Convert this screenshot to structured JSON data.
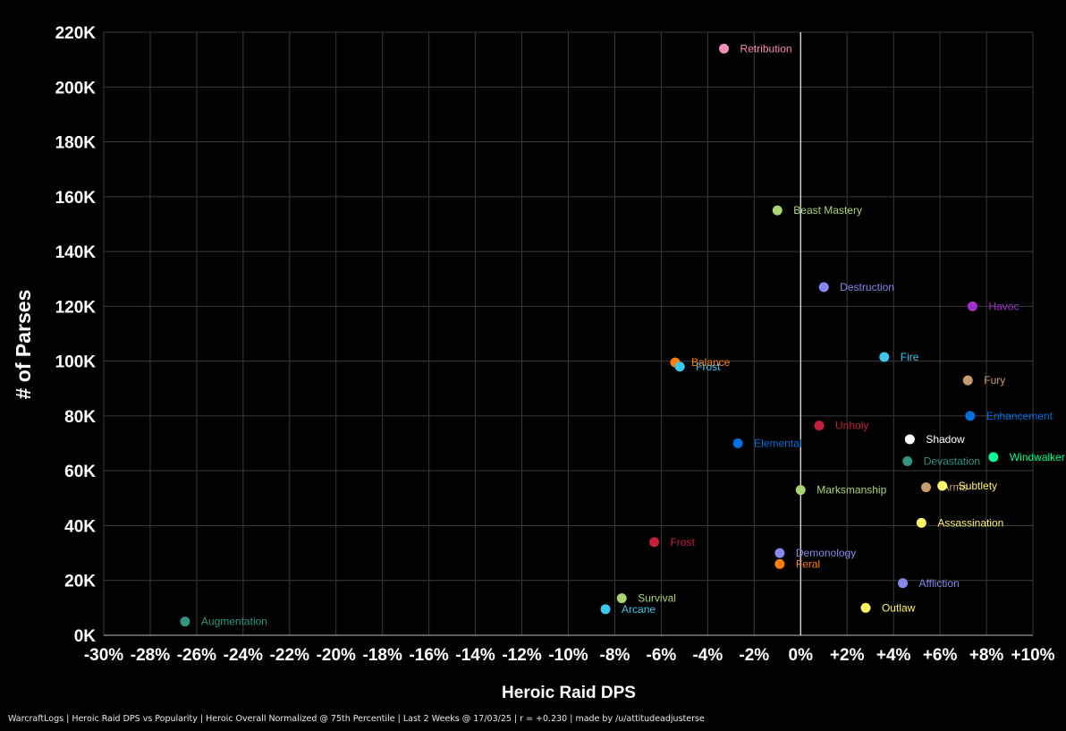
{
  "footer": "WarcraftLogs | Heroic Raid DPS vs Popularity | Heroic Overall Normalized @ 75th Percentile | Last 2 Weeks @ 17/03/25 | r = +0.230 | made by /u/attitudeadjusterse",
  "chart_data": {
    "type": "scatter",
    "title": "",
    "xlabel": "Heroic Raid DPS",
    "ylabel": "# of Parses",
    "xlim": [
      -30,
      10
    ],
    "ylim": [
      0,
      220000
    ],
    "x_ticks": [
      -30,
      -28,
      -26,
      -24,
      -22,
      -20,
      -18,
      -16,
      -14,
      -12,
      -10,
      -8,
      -6,
      -4,
      -2,
      0,
      2,
      4,
      6,
      8,
      10
    ],
    "x_tick_labels": [
      "-30%",
      "-28%",
      "-26%",
      "-24%",
      "-22%",
      "-20%",
      "-18%",
      "-16%",
      "-14%",
      "-12%",
      "-10%",
      "-8%",
      "-6%",
      "-4%",
      "-2%",
      "0%",
      "+2%",
      "+4%",
      "+6%",
      "+8%",
      "+10%"
    ],
    "y_ticks": [
      0,
      20000,
      40000,
      60000,
      80000,
      100000,
      120000,
      140000,
      160000,
      180000,
      200000,
      220000
    ],
    "y_tick_labels": [
      "0K",
      "20K",
      "40K",
      "60K",
      "80K",
      "100K",
      "120K",
      "140K",
      "160K",
      "180K",
      "200K",
      "220K"
    ],
    "grid": true,
    "zero_line": 0,
    "points": [
      {
        "label": "Retribution",
        "x": -3.3,
        "y": 214000,
        "color": "#F58CBA"
      },
      {
        "label": "Beast Mastery",
        "x": -1.0,
        "y": 155000,
        "color": "#ABD473"
      },
      {
        "label": "Destruction",
        "x": 1.0,
        "y": 127000,
        "color": "#8787ED"
      },
      {
        "label": "Havoc",
        "x": 7.4,
        "y": 120000,
        "color": "#A330C9"
      },
      {
        "label": "Balance",
        "x": -5.4,
        "y": 99500,
        "color": "#FF7D0A"
      },
      {
        "label": "Frost",
        "x": -5.2,
        "y": 98000,
        "color": "#3FC7EB"
      },
      {
        "label": "Fire",
        "x": 3.6,
        "y": 101500,
        "color": "#3FC7EB"
      },
      {
        "label": "Fury",
        "x": 7.2,
        "y": 93000,
        "color": "#C79C6E"
      },
      {
        "label": "Unholy",
        "x": 0.8,
        "y": 76500,
        "color": "#C41F3B"
      },
      {
        "label": "Enhancement",
        "x": 7.3,
        "y": 80000,
        "color": "#0070DE"
      },
      {
        "label": "Elemental",
        "x": -2.7,
        "y": 70000,
        "color": "#0070DE"
      },
      {
        "label": "Shadow",
        "x": 4.7,
        "y": 71500,
        "color": "#FFFFFF"
      },
      {
        "label": "Devastation",
        "x": 4.6,
        "y": 63500,
        "color": "#33937F"
      },
      {
        "label": "Windwalker",
        "x": 8.3,
        "y": 65000,
        "color": "#00FF96"
      },
      {
        "label": "Marksmanship",
        "x": 0.0,
        "y": 53000,
        "color": "#ABD473"
      },
      {
        "label": "Arms",
        "x": 5.4,
        "y": 54000,
        "color": "#C79C6E"
      },
      {
        "label": "Subtlety",
        "x": 6.1,
        "y": 54500,
        "color": "#FFF569"
      },
      {
        "label": "Assassination",
        "x": 5.2,
        "y": 41000,
        "color": "#FFF569"
      },
      {
        "label": "Frost",
        "x": -6.3,
        "y": 34000,
        "color": "#C41F3B"
      },
      {
        "label": "Demonology",
        "x": -0.9,
        "y": 30000,
        "color": "#8787ED"
      },
      {
        "label": "Feral",
        "x": -0.9,
        "y": 26000,
        "color": "#FF7D0A"
      },
      {
        "label": "Affliction",
        "x": 4.4,
        "y": 19000,
        "color": "#8787ED"
      },
      {
        "label": "Survival",
        "x": -7.7,
        "y": 13500,
        "color": "#ABD473"
      },
      {
        "label": "Arcane",
        "x": -8.4,
        "y": 9500,
        "color": "#3FC7EB"
      },
      {
        "label": "Outlaw",
        "x": 2.8,
        "y": 10000,
        "color": "#FFF569"
      },
      {
        "label": "Augmentation",
        "x": -26.5,
        "y": 5000,
        "color": "#33937F"
      }
    ]
  }
}
